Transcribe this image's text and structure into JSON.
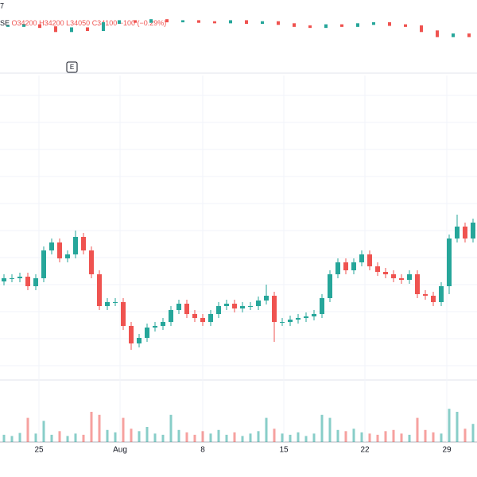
{
  "chart_data": [
    {
      "type": "line",
      "legend_prefix": "SE",
      "legend_open": "O34200",
      "legend_high": "H34200",
      "legend_low": "L34050",
      "legend_close": "C34100",
      "legend_change": "−100 (−0.29%)",
      "symbol_fragment": "7",
      "event_marker": "E",
      "color": "#26a69a",
      "down_color": "#ef5350",
      "values": [
        34200,
        34210,
        34190,
        34150,
        34180,
        34160,
        34230,
        34250,
        34240,
        34260,
        34245,
        34250,
        34240,
        34235,
        34250,
        34230,
        34240,
        34220,
        34200,
        34190,
        34210,
        34200,
        34220,
        34230,
        34210,
        34200,
        34150,
        34100,
        34120,
        34100
      ],
      "ylim": [
        33950,
        34300
      ]
    },
    {
      "type": "candlestick",
      "up_color": "#26a69a",
      "down_color": "#ef5350",
      "grid": true,
      "opens": [
        33580,
        33600,
        33600,
        33610,
        33550,
        33600,
        33775,
        33825,
        33725,
        33750,
        33860,
        33775,
        33625,
        33425,
        33450,
        33450,
        33300,
        33190,
        33225,
        33290,
        33300,
        33325,
        33400,
        33440,
        33375,
        33350,
        33325,
        33375,
        33425,
        33440,
        33410,
        33425,
        33425,
        33460,
        33490,
        33325,
        33325,
        33340,
        33350,
        33360,
        33375,
        33475,
        33625,
        33700,
        33650,
        33700,
        33750,
        33675,
        33640,
        33625,
        33600,
        33590,
        33625,
        33500,
        33490,
        33450,
        33550,
        33850,
        33925,
        33850
      ],
      "highs": [
        33625,
        33625,
        33635,
        33635,
        33625,
        33800,
        33850,
        33850,
        33775,
        33900,
        33885,
        33800,
        33650,
        33475,
        33475,
        33475,
        33325,
        33250,
        33315,
        33325,
        33350,
        33425,
        33465,
        33465,
        33400,
        33375,
        33400,
        33450,
        33465,
        33465,
        33450,
        33450,
        33485,
        33560,
        33515,
        33350,
        33365,
        33375,
        33385,
        33400,
        33500,
        33650,
        33725,
        33725,
        33725,
        33775,
        33775,
        33700,
        33665,
        33650,
        33625,
        33650,
        33650,
        33525,
        33515,
        33575,
        33875,
        34000,
        33950,
        33975
      ],
      "lows": [
        33555,
        33575,
        33575,
        33525,
        33525,
        33575,
        33750,
        33700,
        33700,
        33725,
        33750,
        33600,
        33400,
        33400,
        33425,
        33275,
        33150,
        33165,
        33200,
        33265,
        33275,
        33300,
        33375,
        33350,
        33325,
        33300,
        33300,
        33350,
        33400,
        33385,
        33385,
        33400,
        33400,
        33435,
        33200,
        33300,
        33300,
        33315,
        33325,
        33335,
        33350,
        33450,
        33600,
        33625,
        33625,
        33675,
        33650,
        33615,
        33600,
        33575,
        33565,
        33565,
        33475,
        33465,
        33425,
        33425,
        33500,
        33825,
        33825,
        33825
      ],
      "closes": [
        33600,
        33600,
        33610,
        33550,
        33600,
        33775,
        33825,
        33725,
        33750,
        33860,
        33775,
        33625,
        33425,
        33450,
        33450,
        33300,
        33190,
        33225,
        33290,
        33300,
        33325,
        33400,
        33440,
        33375,
        33350,
        33325,
        33375,
        33425,
        33440,
        33410,
        33425,
        33425,
        33460,
        33490,
        33325,
        33325,
        33340,
        33350,
        33360,
        33375,
        33475,
        33625,
        33700,
        33650,
        33700,
        33750,
        33675,
        33640,
        33625,
        33600,
        33590,
        33625,
        33500,
        33490,
        33450,
        33550,
        33850,
        33925,
        33850,
        33950
      ],
      "volumes": [
        12,
        10,
        15,
        40,
        14,
        35,
        12,
        18,
        10,
        14,
        12,
        50,
        45,
        20,
        16,
        40,
        22,
        18,
        25,
        14,
        12,
        45,
        20,
        16,
        12,
        18,
        14,
        20,
        12,
        16,
        10,
        14,
        18,
        40,
        22,
        14,
        12,
        16,
        10,
        14,
        45,
        40,
        20,
        18,
        22,
        16,
        14,
        12,
        18,
        20,
        14,
        12,
        40,
        20,
        16,
        14,
        55,
        50,
        22,
        30
      ],
      "ylim": [
        33000,
        34875
      ],
      "vlim": [
        0,
        100
      ],
      "xlim": [
        -0.5,
        59.5
      ],
      "xticks": [
        {
          "value": 4.4,
          "label": "25"
        },
        {
          "value": 14.6,
          "label": "Aug"
        },
        {
          "value": 25,
          "label": "8"
        },
        {
          "value": 35.2,
          "label": "15"
        },
        {
          "value": 45.4,
          "label": "22"
        },
        {
          "value": 55.7,
          "label": "29"
        }
      ]
    }
  ]
}
